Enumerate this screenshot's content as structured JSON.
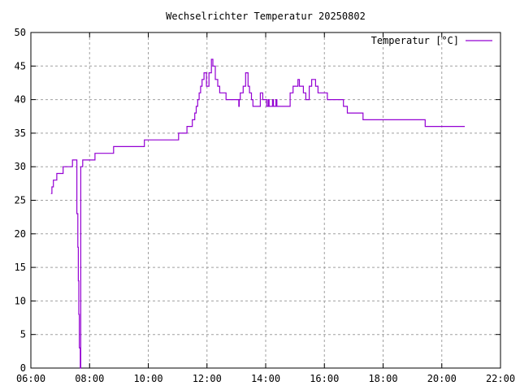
{
  "chart_data": {
    "type": "line",
    "title": "Wechselrichter Temperatur 20250802",
    "xlabel": "",
    "ylabel": "",
    "xlim": [
      "06:00",
      "22:00"
    ],
    "ylim": [
      0,
      50
    ],
    "x_ticks": [
      "06:00",
      "08:00",
      "10:00",
      "12:00",
      "14:00",
      "16:00",
      "18:00",
      "20:00",
      "22:00"
    ],
    "y_ticks": [
      0,
      5,
      10,
      15,
      20,
      25,
      30,
      35,
      40,
      45,
      50
    ],
    "grid": true,
    "legend": "top-right",
    "line_style": "steps",
    "series": [
      {
        "name": "Temperatur [°C]",
        "color": "#9400d3",
        "points": [
          [
            "06:41",
            26
          ],
          [
            "06:43",
            27
          ],
          [
            "06:46",
            28
          ],
          [
            "06:53",
            29
          ],
          [
            "07:06",
            30
          ],
          [
            "07:25",
            31
          ],
          [
            "07:33",
            31
          ],
          [
            "07:34",
            23
          ],
          [
            "07:36",
            18
          ],
          [
            "07:37",
            13
          ],
          [
            "07:38",
            8
          ],
          [
            "07:39",
            3
          ],
          [
            "07:41",
            0
          ],
          [
            "07:42",
            30
          ],
          [
            "07:46",
            31
          ],
          [
            "08:11",
            32
          ],
          [
            "08:49",
            33
          ],
          [
            "09:52",
            34
          ],
          [
            "11:02",
            35
          ],
          [
            "11:19",
            36
          ],
          [
            "11:30",
            37
          ],
          [
            "11:35",
            38
          ],
          [
            "11:38",
            39
          ],
          [
            "11:41",
            40
          ],
          [
            "11:44",
            41
          ],
          [
            "11:47",
            42
          ],
          [
            "11:50",
            43
          ],
          [
            "11:54",
            44
          ],
          [
            "11:59",
            42
          ],
          [
            "12:04",
            44
          ],
          [
            "12:09",
            46
          ],
          [
            "12:12",
            45
          ],
          [
            "12:17",
            43
          ],
          [
            "12:22",
            42
          ],
          [
            "12:26",
            41
          ],
          [
            "12:39",
            40
          ],
          [
            "13:05",
            39
          ],
          [
            "13:06",
            40
          ],
          [
            "13:08",
            41
          ],
          [
            "13:14",
            42
          ],
          [
            "13:19",
            44
          ],
          [
            "13:24",
            42
          ],
          [
            "13:27",
            41
          ],
          [
            "13:31",
            40
          ],
          [
            "13:34",
            39
          ],
          [
            "13:49",
            41
          ],
          [
            "13:54",
            40
          ],
          [
            "14:02",
            39
          ],
          [
            "14:05",
            40
          ],
          [
            "14:07",
            39
          ],
          [
            "14:14",
            40
          ],
          [
            "14:16",
            39
          ],
          [
            "14:21",
            40
          ],
          [
            "14:23",
            39
          ],
          [
            "14:50",
            41
          ],
          [
            "14:56",
            42
          ],
          [
            "15:06",
            43
          ],
          [
            "15:09",
            42
          ],
          [
            "15:17",
            41
          ],
          [
            "15:22",
            40
          ],
          [
            "15:29",
            42
          ],
          [
            "15:34",
            43
          ],
          [
            "15:42",
            42
          ],
          [
            "15:47",
            41
          ],
          [
            "16:06",
            40
          ],
          [
            "16:39",
            39
          ],
          [
            "16:47",
            38
          ],
          [
            "17:19",
            37
          ],
          [
            "19:26",
            36
          ],
          [
            "20:47",
            36
          ]
        ]
      }
    ]
  }
}
